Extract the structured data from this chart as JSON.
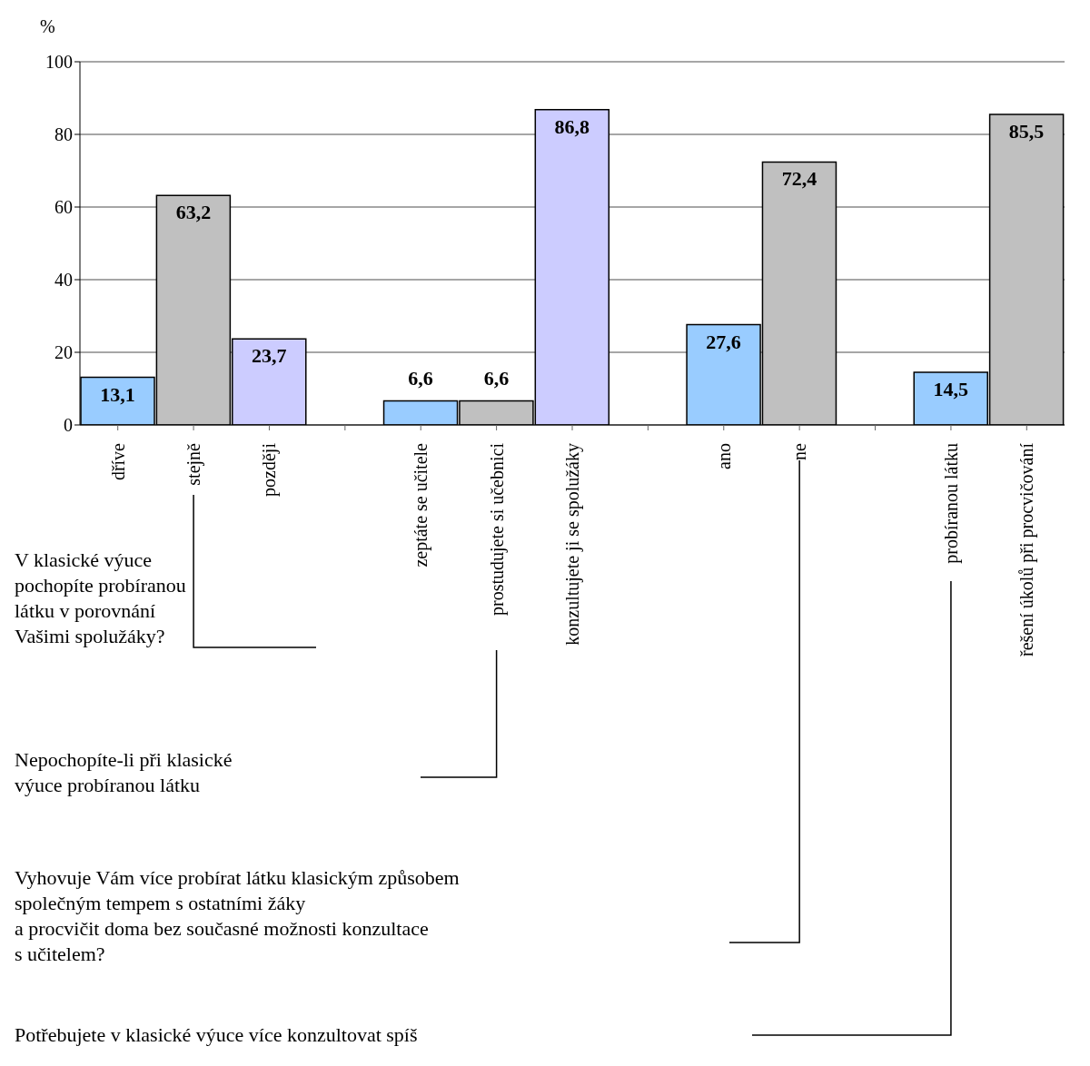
{
  "chart_data": {
    "type": "bar",
    "ylabel": "%",
    "categories": [
      "dříve",
      "stejně",
      "později",
      null,
      "zeptáte se učitele",
      "prostudujete si učebnici",
      "konzultujete ji se spolužáky",
      null,
      "ano",
      "ne",
      null,
      "probíranou látku",
      "řešení úkolů při procvičování"
    ],
    "values": [
      13.1,
      63.2,
      23.7,
      null,
      6.6,
      6.6,
      86.8,
      null,
      27.6,
      72.4,
      null,
      14.5,
      85.5
    ],
    "value_labels": [
      "13,1",
      "63,2",
      "23,7",
      null,
      "6,6",
      "6,6",
      "86,8",
      null,
      "27,6",
      "72,4",
      null,
      "14,5",
      "85,5"
    ],
    "colors": [
      "#99ccff",
      "#c0c0c0",
      "#ccccff",
      "#ffffff",
      "#99ccff",
      "#c0c0c0",
      "#ccccff",
      "#ffffff",
      "#99ccff",
      "#c0c0c0",
      "#ffffff",
      "#99ccff",
      "#c0c0c0"
    ],
    "ylim": [
      0,
      100
    ],
    "yticks": [
      0,
      20,
      40,
      60,
      80,
      100
    ],
    "grid": "y",
    "annotations": [
      "V klasické výuce\npochopíte probíranou\nlátku v porovnání\nVašimi spolužáky?",
      "Nepochopíte-li při klasické\nvýuce probíranou látku",
      "Vyhovuje Vám více probírat látku klasickým způsobem\nspolečným tempem s ostatními žáky\na procvičit doma bez současné možnosti konzultace\ns učitelem?",
      "Potřebujete v klasické výuce více konzultovat spíš"
    ]
  }
}
